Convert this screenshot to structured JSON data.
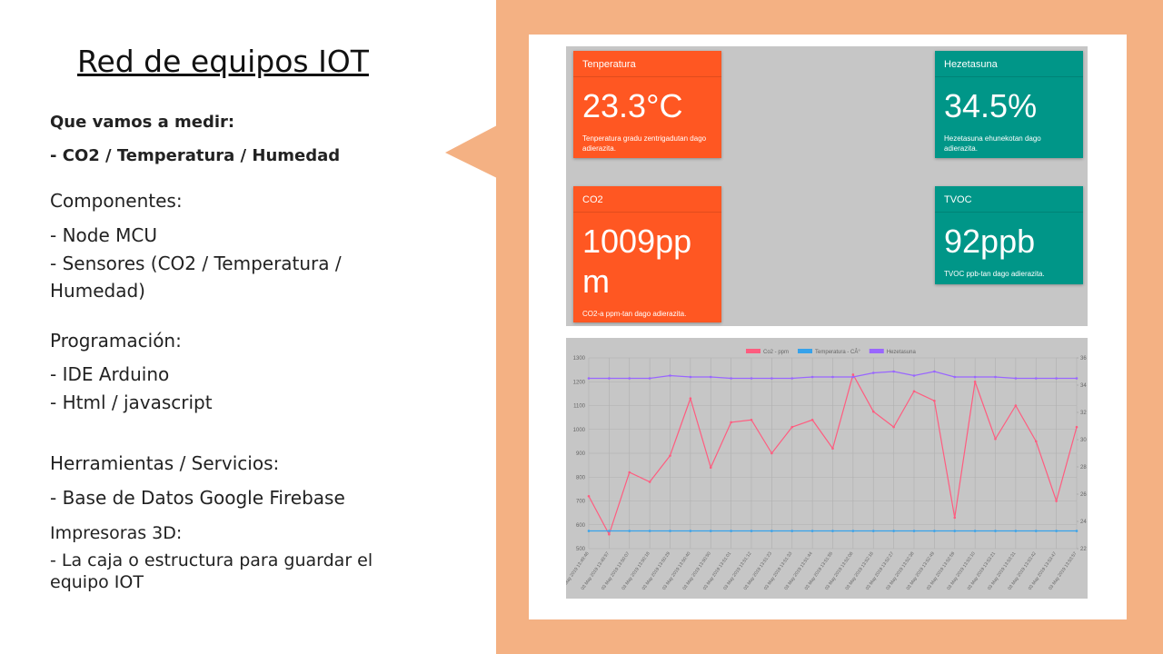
{
  "slide": {
    "title": "Red de equipos IOT",
    "lines": [
      "Que vamos a medir:",
      "- CO2 / Temperatura / Humedad",
      "Componentes:",
      "- Node MCU",
      "- Sensores (CO2 / Temperatura / Humedad)",
      "Programación:",
      "- IDE Arduino",
      "- Html / javascript",
      "Herramientas / Servicios:",
      "- Base de Datos Google Firebase",
      "Impresoras 3D:",
      "- La caja o estructura para guardar el equipo IOT"
    ]
  },
  "dashboard": {
    "cards": [
      {
        "label": "Tenperatura",
        "value": "23.3°C",
        "description": "Tenperatura gradu zentrigadutan dago adierazita."
      },
      {
        "label": "Hezetasuna",
        "value": "34.5%",
        "description": "Hezetasuna ehunekotan dago adierazita."
      },
      {
        "label": "CO2",
        "value": "1009ppm",
        "description": "CO2-a ppm-tan dago adierazita."
      },
      {
        "label": "TVOC",
        "value": "92ppb",
        "description": "TVOC ppb-tan dago adierazita."
      }
    ]
  },
  "chart_data": {
    "type": "line",
    "categories": [
      "03 May 2019 13:49:46",
      "03 May 2019 13:49:57",
      "03 May 2019 13:50:07",
      "03 May 2019 13:50:18",
      "03 May 2019 13:50:29",
      "03 May 2019 13:50:40",
      "03 May 2019 13:50:50",
      "03 May 2019 13:51:01",
      "03 May 2019 13:51:12",
      "03 May 2019 13:51:23",
      "03 May 2019 13:51:33",
      "03 May 2019 13:51:44",
      "03 May 2019 13:51:55",
      "03 May 2019 13:52:06",
      "03 May 2019 13:52:16",
      "03 May 2019 13:52:27",
      "03 May 2019 13:52:38",
      "03 May 2019 13:52:49",
      "03 May 2019 13:52:59",
      "03 May 2019 13:53:10",
      "03 May 2019 13:53:21",
      "03 May 2019 13:53:31",
      "03 May 2019 13:53:42",
      "03 May 2019 13:53:47",
      "03 May 2019 13:53:57"
    ],
    "series": [
      {
        "name": "Co2 - ppm",
        "color": "#ff5c7f",
        "values": [
          720,
          560,
          820,
          780,
          890,
          1130,
          840,
          1030,
          1040,
          900,
          1010,
          1040,
          920,
          1230,
          1075,
          1010,
          1160,
          1120,
          630,
          1200,
          960,
          1100,
          950,
          700,
          1010
        ]
      },
      {
        "name": "Temperatura - CÂ°",
        "color": "#36a2eb",
        "axis": "y2",
        "values": [
          23.3,
          23.3,
          23.3,
          23.3,
          23.3,
          23.3,
          23.3,
          23.3,
          23.3,
          23.3,
          23.3,
          23.3,
          23.3,
          23.3,
          23.3,
          23.3,
          23.3,
          23.3,
          23.3,
          23.3,
          23.3,
          23.3,
          23.3,
          23.3,
          23.3
        ]
      },
      {
        "name": "Hezetasuna",
        "color": "#9966ff",
        "axis": "y2",
        "values": [
          34.5,
          34.5,
          34.5,
          34.5,
          34.7,
          34.6,
          34.6,
          34.5,
          34.5,
          34.5,
          34.5,
          34.6,
          34.6,
          34.6,
          34.9,
          35.0,
          34.7,
          35.0,
          34.6,
          34.6,
          34.6,
          34.5,
          34.5,
          34.5,
          34.5
        ]
      }
    ],
    "ylim": [
      500,
      1300
    ],
    "yticks": [
      500,
      600,
      700,
      800,
      900,
      1000,
      1100,
      1200,
      1300
    ],
    "y2lim": [
      22,
      36
    ],
    "y2ticks": [
      22,
      24,
      26,
      28,
      30,
      32,
      34,
      36
    ],
    "grid": true
  }
}
